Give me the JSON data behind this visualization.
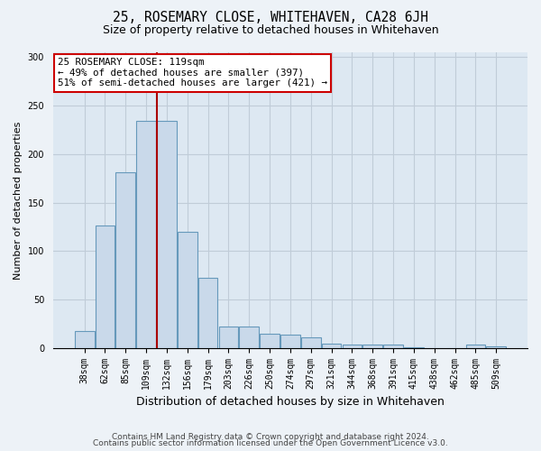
{
  "title1": "25, ROSEMARY CLOSE, WHITEHAVEN, CA28 6JH",
  "title2": "Size of property relative to detached houses in Whitehaven",
  "xlabel": "Distribution of detached houses by size in Whitehaven",
  "ylabel": "Number of detached properties",
  "bar_labels": [
    "38sqm",
    "62sqm",
    "85sqm",
    "109sqm",
    "132sqm",
    "156sqm",
    "179sqm",
    "203sqm",
    "226sqm",
    "250sqm",
    "274sqm",
    "297sqm",
    "321sqm",
    "344sqm",
    "368sqm",
    "391sqm",
    "415sqm",
    "438sqm",
    "462sqm",
    "485sqm",
    "509sqm"
  ],
  "bar_values": [
    18,
    126,
    181,
    234,
    234,
    120,
    73,
    22,
    22,
    15,
    14,
    11,
    5,
    4,
    4,
    4,
    1,
    0,
    0,
    4,
    2
  ],
  "bar_color": "#c9d9ea",
  "bar_edge_color": "#6699bb",
  "vline_index": 3.5,
  "vline_color": "#aa0000",
  "annotation_text": "25 ROSEMARY CLOSE: 119sqm\n← 49% of detached houses are smaller (397)\n51% of semi-detached houses are larger (421) →",
  "annotation_box_color": "#ffffff",
  "annotation_box_edge": "#cc0000",
  "ylim": [
    0,
    305
  ],
  "yticks": [
    0,
    50,
    100,
    150,
    200,
    250,
    300
  ],
  "footer1": "Contains HM Land Registry data © Crown copyright and database right 2024.",
  "footer2": "Contains public sector information licensed under the Open Government Licence v3.0.",
  "bg_color": "#edf2f7",
  "plot_bg_color": "#dde8f2",
  "grid_color": "#c0ccd8",
  "title1_fontsize": 10.5,
  "title2_fontsize": 9,
  "ylabel_fontsize": 8,
  "xlabel_fontsize": 9,
  "tick_fontsize": 7,
  "footer_fontsize": 6.5
}
